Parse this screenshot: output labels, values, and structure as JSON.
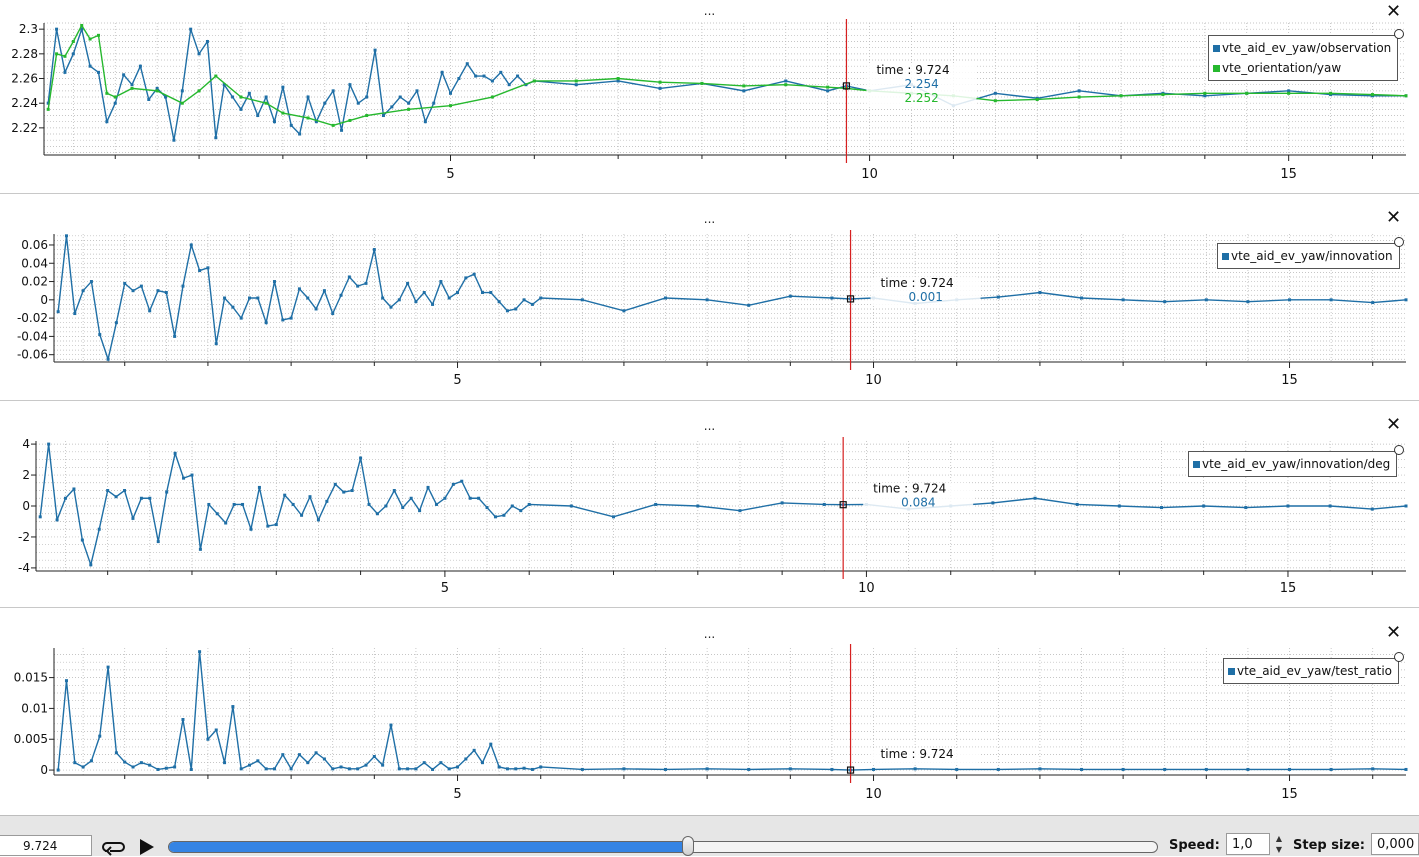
{
  "panel_dots": "...",
  "close_glyph": "✕",
  "controls": {
    "time_value": "9.724",
    "speed_label": "Speed:",
    "speed_value": "1,0",
    "step_label": "Step size:",
    "step_value": "0,000",
    "slider_fraction": 0.525
  },
  "colors": {
    "blue": "#1f6fa6",
    "green": "#26b82e",
    "cursor": "#d62020",
    "grid": "#b4b4b4"
  },
  "chart_data": [
    {
      "type": "line",
      "xlim": [
        0.15,
        16.4
      ],
      "ylim": [
        2.198,
        2.305
      ],
      "xticks": [
        5,
        10,
        15
      ],
      "yticks": [
        2.22,
        2.24,
        2.26,
        2.28,
        2.3
      ],
      "ytick_labels": [
        "2.22",
        "2.24",
        "2.26",
        "2.28",
        "2.3"
      ],
      "grid": true,
      "legend_position": "top-right",
      "cursor": {
        "time_label": "time : 9.724",
        "x": 9.724,
        "values": [
          "2.254",
          "2.252"
        ]
      },
      "series": [
        {
          "name": "vte_aid_ev_yaw/observation",
          "color": "blue",
          "x": [
            0.2,
            0.3,
            0.4,
            0.5,
            0.6,
            0.7,
            0.8,
            0.9,
            1.0,
            1.1,
            1.2,
            1.3,
            1.4,
            1.5,
            1.6,
            1.7,
            1.8,
            1.9,
            2.0,
            2.1,
            2.2,
            2.3,
            2.4,
            2.5,
            2.6,
            2.7,
            2.8,
            2.9,
            3.0,
            3.1,
            3.2,
            3.3,
            3.4,
            3.5,
            3.6,
            3.7,
            3.8,
            3.9,
            4.0,
            4.1,
            4.2,
            4.3,
            4.4,
            4.5,
            4.6,
            4.7,
            4.8,
            4.9,
            5.0,
            5.1,
            5.2,
            5.3,
            5.4,
            5.5,
            5.6,
            5.7,
            5.8,
            5.9,
            6.0,
            6.5,
            7.0,
            7.5,
            8.0,
            8.5,
            9.0,
            9.5,
            9.724,
            10.0,
            10.5,
            11.0,
            11.5,
            12.0,
            12.5,
            13.0,
            13.5,
            14.0,
            14.5,
            15.0,
            15.5,
            16.0,
            16.4
          ],
          "y": [
            2.24,
            2.3,
            2.265,
            2.28,
            2.3,
            2.27,
            2.265,
            2.225,
            2.24,
            2.263,
            2.255,
            2.27,
            2.243,
            2.252,
            2.245,
            2.21,
            2.25,
            2.3,
            2.28,
            2.29,
            2.212,
            2.255,
            2.245,
            2.235,
            2.248,
            2.23,
            2.245,
            2.225,
            2.253,
            2.222,
            2.215,
            2.245,
            2.225,
            2.24,
            2.25,
            2.218,
            2.255,
            2.24,
            2.245,
            2.283,
            2.23,
            2.237,
            2.245,
            2.24,
            2.25,
            2.225,
            2.24,
            2.265,
            2.248,
            2.26,
            2.272,
            2.262,
            2.262,
            2.258,
            2.265,
            2.255,
            2.262,
            2.255,
            2.258,
            2.255,
            2.258,
            2.252,
            2.256,
            2.25,
            2.258,
            2.25,
            2.254,
            2.25,
            2.255,
            2.238,
            2.248,
            2.244,
            2.25,
            2.246,
            2.248,
            2.246,
            2.248,
            2.25,
            2.247,
            2.246,
            2.246
          ]
        },
        {
          "name": "vte_orientation/yaw",
          "color": "green",
          "x": [
            0.2,
            0.3,
            0.4,
            0.5,
            0.6,
            0.7,
            0.8,
            0.9,
            1.0,
            1.2,
            1.5,
            1.8,
            2.0,
            2.2,
            2.5,
            2.8,
            3.0,
            3.3,
            3.6,
            3.8,
            4.0,
            4.5,
            5.0,
            5.5,
            6.0,
            6.5,
            7.0,
            7.5,
            8.0,
            8.5,
            9.0,
            9.5,
            9.724,
            10.0,
            10.5,
            11.0,
            11.5,
            12.0,
            12.5,
            13.0,
            13.5,
            14.0,
            14.5,
            15.0,
            15.5,
            16.0,
            16.4
          ],
          "y": [
            2.235,
            2.28,
            2.278,
            2.29,
            2.303,
            2.292,
            2.295,
            2.248,
            2.245,
            2.252,
            2.25,
            2.24,
            2.25,
            2.262,
            2.245,
            2.24,
            2.232,
            2.228,
            2.222,
            2.226,
            2.23,
            2.235,
            2.238,
            2.245,
            2.258,
            2.258,
            2.26,
            2.257,
            2.256,
            2.254,
            2.255,
            2.253,
            2.252,
            2.25,
            2.248,
            2.246,
            2.242,
            2.243,
            2.245,
            2.246,
            2.247,
            2.248,
            2.248,
            2.248,
            2.248,
            2.247,
            2.246
          ]
        }
      ]
    },
    {
      "type": "line",
      "xlim": [
        0.15,
        16.4
      ],
      "ylim": [
        -0.068,
        0.072
      ],
      "xticks": [
        5,
        10,
        15
      ],
      "yticks": [
        -0.06,
        -0.04,
        -0.02,
        0,
        0.02,
        0.04,
        0.06
      ],
      "ytick_labels": [
        "-0.06",
        "-0.04",
        "-0.02",
        "0",
        "0.02",
        "0.04",
        "0.06"
      ],
      "grid": true,
      "legend_position": "top-right",
      "cursor": {
        "time_label": "time : 9.724",
        "x": 9.724,
        "values": [
          "0.001"
        ]
      },
      "series": [
        {
          "name": "vte_aid_ev_yaw/innovation",
          "color": "blue",
          "x": [
            0.2,
            0.3,
            0.4,
            0.5,
            0.6,
            0.7,
            0.8,
            0.9,
            1.0,
            1.1,
            1.2,
            1.3,
            1.4,
            1.5,
            1.6,
            1.7,
            1.8,
            1.9,
            2.0,
            2.1,
            2.2,
            2.3,
            2.4,
            2.5,
            2.6,
            2.7,
            2.8,
            2.9,
            3.0,
            3.1,
            3.2,
            3.3,
            3.4,
            3.5,
            3.6,
            3.7,
            3.8,
            3.9,
            4.0,
            4.1,
            4.2,
            4.3,
            4.4,
            4.5,
            4.6,
            4.7,
            4.8,
            4.9,
            5.0,
            5.1,
            5.2,
            5.3,
            5.4,
            5.5,
            5.6,
            5.7,
            5.8,
            5.9,
            6.0,
            6.5,
            7.0,
            7.5,
            8.0,
            8.5,
            9.0,
            9.5,
            9.724,
            10.0,
            10.5,
            11.0,
            11.5,
            12.0,
            12.5,
            13.0,
            13.5,
            14.0,
            14.5,
            15.0,
            15.5,
            16.0,
            16.4
          ],
          "y": [
            -0.013,
            0.07,
            -0.015,
            0.01,
            0.02,
            -0.038,
            -0.065,
            -0.025,
            0.018,
            0.01,
            0.015,
            -0.012,
            0.01,
            0.008,
            -0.04,
            0.015,
            0.06,
            0.032,
            0.035,
            -0.048,
            0.002,
            -0.008,
            -0.02,
            0.002,
            0.002,
            -0.025,
            0.02,
            -0.022,
            -0.02,
            0.012,
            0.002,
            -0.01,
            0.01,
            -0.015,
            0.005,
            0.025,
            0.015,
            0.018,
            0.055,
            0.002,
            -0.008,
            0.0,
            0.018,
            -0.002,
            0.008,
            -0.005,
            0.02,
            0.002,
            0.008,
            0.024,
            0.028,
            0.008,
            0.008,
            -0.002,
            -0.012,
            -0.01,
            0.0,
            -0.005,
            0.002,
            0.0,
            -0.012,
            0.002,
            0.0,
            -0.006,
            0.004,
            0.002,
            0.001,
            0.002,
            -0.004,
            0.0,
            0.003,
            0.008,
            0.002,
            0.0,
            -0.002,
            0.0,
            -0.002,
            0.0,
            0.0,
            -0.003,
            0.0
          ]
        }
      ]
    },
    {
      "type": "line",
      "xlim": [
        0.15,
        16.4
      ],
      "ylim": [
        -4.2,
        4.2
      ],
      "xticks": [
        5,
        10,
        15
      ],
      "yticks": [
        -4,
        -2,
        0,
        2,
        4
      ],
      "ytick_labels": [
        "-4",
        "-2",
        "0",
        "2",
        "4"
      ],
      "grid": true,
      "legend_position": "top-right",
      "cursor": {
        "time_label": "time : 9.724",
        "x": 9.724,
        "values": [
          "0.084"
        ]
      },
      "series": [
        {
          "name": "vte_aid_ev_yaw/innovation/deg",
          "color": "blue",
          "x": [
            0.2,
            0.3,
            0.4,
            0.5,
            0.6,
            0.7,
            0.8,
            0.9,
            1.0,
            1.1,
            1.2,
            1.3,
            1.4,
            1.5,
            1.6,
            1.7,
            1.8,
            1.9,
            2.0,
            2.1,
            2.2,
            2.3,
            2.4,
            2.5,
            2.6,
            2.7,
            2.8,
            2.9,
            3.0,
            3.1,
            3.2,
            3.3,
            3.4,
            3.5,
            3.6,
            3.7,
            3.8,
            3.9,
            4.0,
            4.1,
            4.2,
            4.3,
            4.4,
            4.5,
            4.6,
            4.7,
            4.8,
            4.9,
            5.0,
            5.1,
            5.2,
            5.3,
            5.4,
            5.5,
            5.6,
            5.7,
            5.8,
            5.9,
            6.0,
            6.5,
            7.0,
            7.5,
            8.0,
            8.5,
            9.0,
            9.5,
            9.724,
            10.0,
            10.5,
            11.0,
            11.5,
            12.0,
            12.5,
            13.0,
            13.5,
            14.0,
            14.5,
            15.0,
            15.5,
            16.0,
            16.4
          ],
          "y": [
            -0.7,
            4.0,
            -0.9,
            0.5,
            1.1,
            -2.2,
            -3.8,
            -1.5,
            1.0,
            0.6,
            1.0,
            -0.8,
            0.5,
            0.5,
            -2.3,
            0.9,
            3.4,
            1.8,
            2.0,
            -2.8,
            0.1,
            -0.5,
            -1.1,
            0.1,
            0.1,
            -1.5,
            1.2,
            -1.3,
            -1.2,
            0.7,
            0.1,
            -0.6,
            0.6,
            -0.9,
            0.3,
            1.4,
            0.9,
            1.0,
            3.1,
            0.1,
            -0.5,
            0.0,
            1.0,
            -0.1,
            0.5,
            -0.3,
            1.2,
            0.1,
            0.5,
            1.4,
            1.6,
            0.5,
            0.5,
            -0.1,
            -0.7,
            -0.6,
            0.0,
            -0.3,
            0.1,
            0.0,
            -0.7,
            0.1,
            0.0,
            -0.3,
            0.2,
            0.1,
            0.084,
            0.1,
            -0.2,
            0.0,
            0.2,
            0.5,
            0.1,
            0.0,
            -0.1,
            0.0,
            -0.1,
            0.0,
            0.0,
            -0.2,
            0.0
          ]
        }
      ]
    },
    {
      "type": "line",
      "xlim": [
        0.15,
        16.4
      ],
      "ylim": [
        -0.0008,
        0.0198
      ],
      "xticks": [
        5,
        10,
        15
      ],
      "yticks": [
        0,
        0.005,
        0.01,
        0.015
      ],
      "ytick_labels": [
        "0",
        "0.005",
        "0.01",
        "0.015"
      ],
      "grid": true,
      "legend_position": "top-right",
      "cursor": {
        "time_label": "time : 9.724",
        "x": 9.724,
        "values": []
      },
      "series": [
        {
          "name": "vte_aid_ev_yaw/test_ratio",
          "color": "blue",
          "x": [
            0.2,
            0.3,
            0.4,
            0.5,
            0.6,
            0.7,
            0.8,
            0.9,
            1.0,
            1.1,
            1.2,
            1.3,
            1.4,
            1.5,
            1.6,
            1.7,
            1.8,
            1.9,
            2.0,
            2.1,
            2.2,
            2.3,
            2.4,
            2.5,
            2.6,
            2.7,
            2.8,
            2.9,
            3.0,
            3.1,
            3.2,
            3.3,
            3.4,
            3.5,
            3.6,
            3.7,
            3.8,
            3.9,
            4.0,
            4.1,
            4.2,
            4.3,
            4.4,
            4.5,
            4.6,
            4.7,
            4.8,
            4.9,
            5.0,
            5.1,
            5.2,
            5.3,
            5.4,
            5.5,
            5.6,
            5.7,
            5.8,
            5.9,
            6.0,
            6.5,
            7.0,
            7.5,
            8.0,
            8.5,
            9.0,
            9.5,
            9.724,
            10.0,
            10.5,
            11.0,
            11.5,
            12.0,
            12.5,
            13.0,
            13.5,
            14.0,
            14.5,
            15.0,
            15.5,
            16.0,
            16.4
          ],
          "y": [
            0.0,
            0.0145,
            0.0012,
            0.0005,
            0.0015,
            0.0055,
            0.0167,
            0.0028,
            0.0013,
            0.0005,
            0.0012,
            0.0008,
            0.0001,
            0.0003,
            0.0005,
            0.0082,
            0.0001,
            0.0192,
            0.005,
            0.0065,
            0.0012,
            0.0103,
            0.0002,
            0.0008,
            0.0015,
            0.0002,
            0.0002,
            0.0025,
            0.0002,
            0.0025,
            0.0012,
            0.0028,
            0.0018,
            0.0002,
            0.0005,
            0.0002,
            0.0002,
            0.0008,
            0.0022,
            0.0008,
            0.0073,
            0.0002,
            0.0002,
            0.0002,
            0.0012,
            0.0001,
            0.0012,
            0.0002,
            0.0005,
            0.0018,
            0.0032,
            0.0012,
            0.0042,
            0.0005,
            0.0002,
            0.0002,
            0.0003,
            0.0001,
            0.0005,
            0.0001,
            0.0002,
            0.0001,
            0.0002,
            0.0001,
            0.0002,
            0.0001,
            0.0,
            0.0001,
            0.0002,
            0.0001,
            0.0001,
            0.0002,
            0.0001,
            0.0001,
            0.0001,
            0.0001,
            0.0001,
            0.0001,
            0.0001,
            0.0002,
            0.0001
          ]
        }
      ]
    }
  ]
}
